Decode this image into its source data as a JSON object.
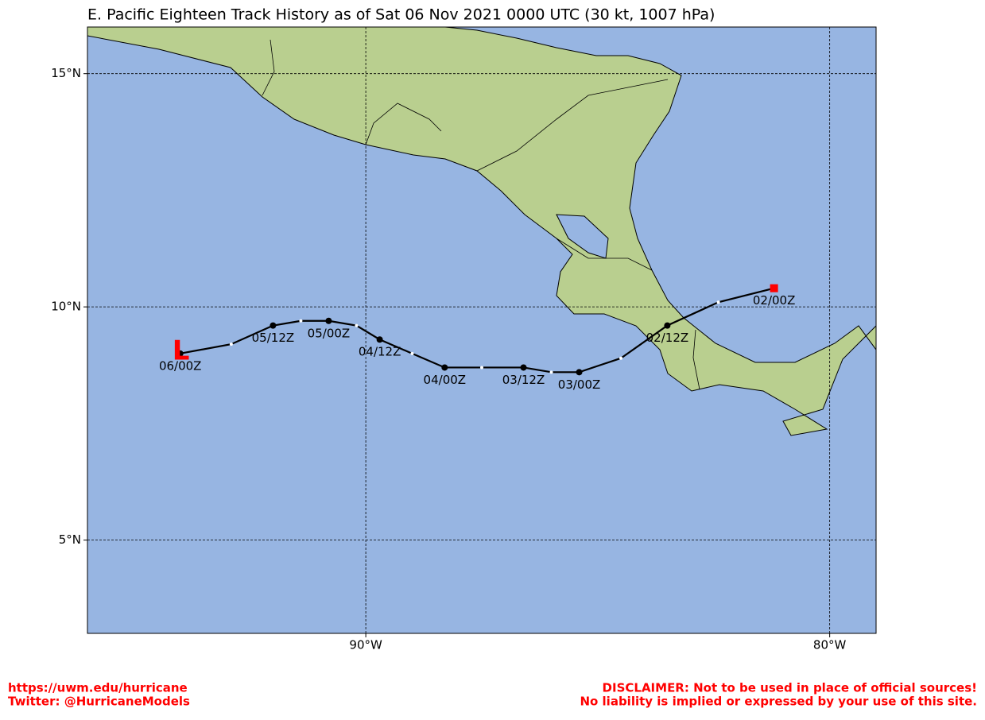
{
  "title": "E. Pacific Eighteen Track History as of Sat 06 Nov 2021 0000 UTC (30 kt, 1007 hPa)",
  "map": {
    "xlim": [
      -96,
      -79
    ],
    "ylim": [
      3,
      16
    ],
    "xticks": [
      {
        "value": -90,
        "label": "90°W"
      },
      {
        "value": -80,
        "label": "80°W"
      }
    ],
    "yticks": [
      {
        "value": 5,
        "label": "5°N"
      },
      {
        "value": 10,
        "label": "10°N"
      },
      {
        "value": 15,
        "label": "15°N"
      }
    ],
    "grid": true,
    "track": {
      "lon": [
        -81.2,
        -82.4,
        -83.5,
        -84.5,
        -85.4,
        -86.0,
        -86.6,
        -87.5,
        -88.3,
        -89.0,
        -89.7,
        -90.2,
        -90.8,
        -91.4,
        -92.0,
        -92.9,
        -94.0
      ],
      "lat": [
        10.4,
        10.1,
        9.6,
        8.9,
        8.6,
        8.6,
        8.7,
        8.7,
        8.7,
        9.0,
        9.3,
        9.6,
        9.7,
        9.7,
        9.6,
        9.2,
        9.0
      ],
      "labels": [
        "02/00Z",
        null,
        "02/12Z",
        null,
        "03/00Z",
        null,
        "03/12Z",
        null,
        "04/00Z",
        null,
        "04/12Z",
        null,
        "05/00Z",
        null,
        "05/12Z",
        null,
        "06/00Z"
      ],
      "current_symbol": "L",
      "color": "#000000",
      "symbol_color": "#ff0000"
    }
  },
  "footer": {
    "left": [
      "https://uwm.edu/hurricane",
      "Twitter: @HurricaneModels"
    ],
    "right": [
      "DISCLAIMER: Not to be used in place of official sources!",
      "No liability is implied or expressed by your use of this site."
    ]
  }
}
